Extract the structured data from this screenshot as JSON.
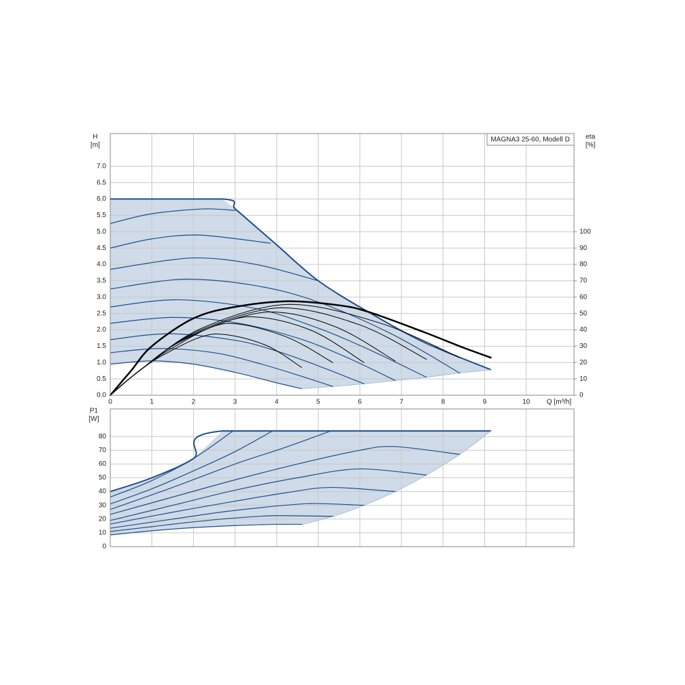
{
  "chart_data": [
    {
      "type": "line",
      "title": "MAGNA3 25-60, Modell D",
      "ylabel": "H",
      "ylabel_unit": "[m]",
      "y2label": "eta",
      "y2label_unit": "[%]",
      "xlabel": "Q [m³/h]",
      "xlim": [
        0,
        11.15
      ],
      "xticks": [
        0,
        1,
        2,
        3,
        4,
        5,
        6,
        7,
        8,
        9,
        10
      ],
      "ylim": [
        0,
        8
      ],
      "yticks": [
        {
          "value": 0,
          "label": "0.0"
        },
        {
          "value": 0.5,
          "label": "0.5"
        },
        {
          "value": 1,
          "label": "1.0"
        },
        {
          "value": 1.5,
          "label": "1.5"
        },
        {
          "value": 2,
          "label": "2.0"
        },
        {
          "value": 2.5,
          "label": "2.5"
        },
        {
          "value": 3,
          "label": "3.0"
        },
        {
          "value": 3.5,
          "label": "3.5"
        },
        {
          "value": 4,
          "label": "4.0"
        },
        {
          "value": 4.5,
          "label": "4.5"
        },
        {
          "value": 5,
          "label": "5.0"
        },
        {
          "value": 5.5,
          "label": "5.5"
        },
        {
          "value": 6,
          "label": "6.0"
        },
        {
          "value": 6.5,
          "label": "6.5"
        },
        {
          "value": 7,
          "label": "7.0"
        }
      ],
      "y2lim": [
        0,
        160
      ],
      "y2ticks": [
        0,
        10,
        20,
        30,
        40,
        50,
        60,
        70,
        80,
        90,
        100
      ],
      "grid": true,
      "fill_color": "#cfdbe8",
      "series": [
        {
          "color": "#1f4e8c",
          "width": 2,
          "x": [
            0,
            2.7,
            3.0,
            3.5,
            4.0,
            5.0,
            6.24,
            7.56,
            9.15
          ],
          "values": [
            6,
            6,
            5.7,
            5.15,
            4.6,
            3.5,
            2.52,
            1.61,
            0.78
          ]
        },
        {
          "color": "#a9bdd3",
          "width": 1,
          "x": [
            4.6,
            5.35,
            6.1,
            6.85,
            7.6,
            8.4,
            9.15
          ],
          "values": [
            0.2,
            0.27,
            0.35,
            0.45,
            0.55,
            0.68,
            0.78
          ]
        },
        {
          "color": "#1f4e8c",
          "width": 1.2,
          "x": [
            0,
            1,
            2,
            3,
            4,
            4.6
          ],
          "values": [
            0.95,
            1.05,
            0.95,
            0.7,
            0.38,
            0.2
          ]
        },
        {
          "color": "#1f4e8c",
          "width": 1.2,
          "x": [
            0,
            1.2,
            2.5,
            3.5,
            4.5,
            5.35
          ],
          "values": [
            1.3,
            1.43,
            1.3,
            1.0,
            0.62,
            0.27
          ]
        },
        {
          "color": "#1f4e8c",
          "width": 1.2,
          "x": [
            0,
            1.4,
            3,
            4,
            5,
            6.1
          ],
          "values": [
            1.7,
            1.88,
            1.68,
            1.35,
            0.9,
            0.35
          ]
        },
        {
          "color": "#1f4e8c",
          "width": 1.2,
          "x": [
            0,
            1.5,
            3,
            4.5,
            5.7,
            6.85
          ],
          "values": [
            2.2,
            2.38,
            2.22,
            1.75,
            1.15,
            0.45
          ]
        },
        {
          "color": "#1f4e8c",
          "width": 1.2,
          "x": [
            0,
            1.6,
            3.5,
            5,
            6.3,
            7.6
          ],
          "values": [
            2.7,
            2.92,
            2.65,
            2.05,
            1.35,
            0.55
          ]
        },
        {
          "color": "#1f4e8c",
          "width": 1.2,
          "x": [
            0,
            1.8,
            3.5,
            5,
            6.8,
            8.4
          ],
          "values": [
            3.25,
            3.55,
            3.35,
            2.85,
            1.85,
            0.68
          ]
        },
        {
          "color": "#1f4e8c",
          "width": 1.2,
          "x": [
            0,
            2,
            3.5,
            5
          ],
          "values": [
            3.85,
            4.2,
            4.0,
            3.5
          ]
        },
        {
          "color": "#1f4e8c",
          "width": 1.2,
          "x": [
            0,
            1,
            2.1,
            3.85
          ],
          "values": [
            4.5,
            4.78,
            4.9,
            4.65
          ]
        },
        {
          "color": "#1f4e8c",
          "width": 1.2,
          "x": [
            0,
            1,
            2.3,
            3.0
          ],
          "values": [
            5.25,
            5.55,
            5.7,
            5.65
          ]
        },
        {
          "color": "#000000",
          "width": 1,
          "axis": "y2",
          "x": [
            0,
            0.5,
            1.3,
            2.5,
            3.7,
            4.6
          ],
          "values": [
            0,
            11,
            25,
            37.5,
            31,
            17
          ]
        },
        {
          "color": "#000000",
          "width": 1,
          "axis": "y2",
          "x": [
            0,
            0.6,
            1.5,
            2.8,
            4.2,
            5.35
          ],
          "values": [
            0,
            13,
            29,
            44,
            36,
            20
          ]
        },
        {
          "color": "#000000",
          "width": 1,
          "axis": "y2",
          "x": [
            0,
            0.7,
            1.7,
            3.3,
            4.8,
            6.1
          ],
          "values": [
            0,
            15,
            33,
            48,
            40,
            20
          ]
        },
        {
          "color": "#000000",
          "width": 1,
          "axis": "y2",
          "x": [
            0,
            0.7,
            1.9,
            3.8,
            5.4,
            6.85
          ],
          "values": [
            0,
            15,
            36,
            51,
            42,
            21
          ]
        },
        {
          "color": "#000000",
          "width": 1,
          "axis": "y2",
          "x": [
            0,
            0.8,
            2.1,
            4.1,
            6.0,
            7.6
          ],
          "values": [
            0,
            17,
            39,
            53.5,
            43,
            22
          ]
        },
        {
          "color": "#000000",
          "width": 1,
          "axis": "y2",
          "x": [
            0,
            0.8,
            2.2,
            4.3,
            6.5,
            8.4
          ],
          "values": [
            0,
            17,
            41,
            55.6,
            44,
            23
          ]
        },
        {
          "color": "#000000",
          "width": 2.5,
          "axis": "y2",
          "x": [
            0,
            0.5,
            1,
            2,
            3,
            4.3,
            5.5,
            6.2,
            7.5,
            8.5,
            9.15
          ],
          "values": [
            0,
            15,
            30,
            47,
            54,
            57.5,
            55,
            51,
            39,
            29,
            23
          ]
        }
      ]
    },
    {
      "type": "line",
      "ylabel": "P1",
      "ylabel_unit": "[W]",
      "xlim": [
        0,
        11.15
      ],
      "ylim": [
        0,
        100
      ],
      "yticks": [
        0,
        10,
        20,
        30,
        40,
        50,
        60,
        70,
        80
      ],
      "grid": true,
      "fill_color": "#cfdbe8",
      "series": [
        {
          "color": "#1f4e8c",
          "width": 2,
          "x": [
            0,
            1,
            2,
            2.7,
            9.15
          ],
          "values": [
            40,
            50,
            64,
            84,
            84
          ]
        },
        {
          "color": "#a9bdd3",
          "width": 1,
          "x": [
            4.6,
            5.35,
            6.1,
            6.85,
            7.6,
            8.4,
            9.15
          ],
          "values": [
            16,
            22,
            30,
            40,
            52,
            67,
            84
          ]
        },
        {
          "color": "#1f4e8c",
          "width": 1.2,
          "x": [
            0,
            1,
            2,
            3,
            4,
            4.6
          ],
          "values": [
            8.5,
            11.5,
            13.8,
            15.3,
            16.2,
            16.2
          ]
        },
        {
          "color": "#1f4e8c",
          "width": 1.2,
          "x": [
            0,
            1,
            2,
            3,
            4,
            5.35
          ],
          "values": [
            11,
            14.5,
            18,
            20.8,
            22.5,
            22
          ]
        },
        {
          "color": "#1f4e8c",
          "width": 1.2,
          "x": [
            0,
            1.5,
            3,
            4.8,
            6.1
          ],
          "values": [
            13.4,
            20,
            26.3,
            31.3,
            30
          ]
        },
        {
          "color": "#1f4e8c",
          "width": 1.2,
          "x": [
            0,
            1.5,
            3,
            4.2,
            5.3,
            6.85
          ],
          "values": [
            16.4,
            25,
            33,
            39,
            43,
            40
          ]
        },
        {
          "color": "#1f4e8c",
          "width": 1.2,
          "x": [
            0,
            1.5,
            3,
            4.5,
            6,
            7.6
          ],
          "values": [
            19,
            30,
            41,
            50,
            56.5,
            52
          ]
        },
        {
          "color": "#1f4e8c",
          "width": 1.2,
          "x": [
            0,
            1.5,
            3,
            4.5,
            6,
            6.8,
            8.4
          ],
          "values": [
            23.4,
            36,
            48.5,
            60,
            70,
            72.8,
            67
          ]
        },
        {
          "color": "#1f4e8c",
          "width": 1.2,
          "x": [
            0,
            1.5,
            3,
            4.2,
            5.3
          ],
          "values": [
            27,
            43,
            60,
            72,
            84
          ]
        },
        {
          "color": "#1f4e8c",
          "width": 1.2,
          "x": [
            0,
            1,
            2,
            3,
            3.9
          ],
          "values": [
            31,
            42,
            55,
            69,
            84
          ]
        },
        {
          "color": "#1f4e8c",
          "width": 1.2,
          "x": [
            0,
            1,
            2,
            2.95
          ],
          "values": [
            36,
            48,
            64,
            84
          ]
        }
      ]
    }
  ]
}
